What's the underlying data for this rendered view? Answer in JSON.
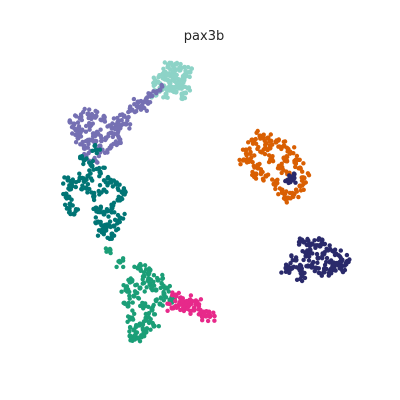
{
  "chart_data": {
    "type": "scatter",
    "title": "pax3b",
    "xlabel": "",
    "ylabel": "",
    "axes_visible": false,
    "grid": false,
    "legend": "none",
    "series": [
      {
        "color": "#8dd3c7",
        "points": [
          [
            174,
            72
          ],
          [
            168,
            67
          ],
          [
            180,
            70
          ],
          [
            186,
            76
          ],
          [
            163,
            78
          ],
          [
            170,
            83
          ],
          [
            178,
            84
          ],
          [
            188,
            88
          ],
          [
            160,
            88
          ],
          [
            166,
            94
          ],
          [
            176,
            92
          ],
          [
            184,
            80
          ],
          [
            158,
            82
          ],
          [
            172,
            76
          ],
          [
            182,
            94
          ],
          [
            164,
            73
          ],
          [
            190,
            72
          ],
          [
            176,
            64
          ],
          [
            168,
            90
          ],
          [
            156,
            95
          ]
        ]
      },
      {
        "color": "#7570b3",
        "points": [
          [
            150,
            96
          ],
          [
            138,
            102
          ],
          [
            132,
            110
          ],
          [
            124,
            116
          ],
          [
            118,
            122
          ],
          [
            112,
            128
          ],
          [
            104,
            120
          ],
          [
            96,
            116
          ],
          [
            88,
            114
          ],
          [
            80,
            118
          ],
          [
            74,
            124
          ],
          [
            82,
            130
          ],
          [
            90,
            126
          ],
          [
            98,
            134
          ],
          [
            106,
            138
          ],
          [
            114,
            134
          ],
          [
            120,
            142
          ],
          [
            110,
            148
          ],
          [
            100,
            146
          ],
          [
            92,
            140
          ],
          [
            84,
            146
          ],
          [
            78,
            138
          ],
          [
            86,
            156
          ],
          [
            94,
            160
          ],
          [
            100,
            152
          ],
          [
            120,
            128
          ],
          [
            126,
            124
          ],
          [
            146,
            100
          ],
          [
            142,
            106
          ],
          [
            76,
            130
          ],
          [
            160,
            90
          ]
        ]
      },
      {
        "color": "#007575",
        "points": [
          [
            84,
            160
          ],
          [
            92,
            166
          ],
          [
            100,
            172
          ],
          [
            108,
            178
          ],
          [
            116,
            184
          ],
          [
            122,
            192
          ],
          [
            118,
            200
          ],
          [
            112,
            208
          ],
          [
            104,
            214
          ],
          [
            98,
            222
          ],
          [
            106,
            228
          ],
          [
            112,
            234
          ],
          [
            102,
            232
          ],
          [
            94,
            196
          ],
          [
            86,
            188
          ],
          [
            80,
            178
          ],
          [
            72,
            186
          ],
          [
            66,
            194
          ],
          [
            70,
            204
          ],
          [
            74,
            214
          ],
          [
            96,
            208
          ],
          [
            104,
            190
          ],
          [
            88,
            176
          ],
          [
            96,
            150
          ],
          [
            114,
            226
          ],
          [
            120,
            218
          ],
          [
            68,
            180
          ]
        ]
      },
      {
        "color": "#1b9e77",
        "points": [
          [
            138,
            268
          ],
          [
            144,
            276
          ],
          [
            150,
            284
          ],
          [
            156,
            290
          ],
          [
            164,
            294
          ],
          [
            170,
            300
          ],
          [
            160,
            304
          ],
          [
            152,
            310
          ],
          [
            146,
            318
          ],
          [
            140,
            324
          ],
          [
            134,
            330
          ],
          [
            130,
            336
          ],
          [
            138,
            338
          ],
          [
            146,
            332
          ],
          [
            154,
            326
          ],
          [
            132,
            318
          ],
          [
            128,
            306
          ],
          [
            134,
            296
          ],
          [
            140,
            288
          ],
          [
            130,
            282
          ],
          [
            126,
            290
          ],
          [
            150,
            270
          ],
          [
            158,
            280
          ],
          [
            166,
            288
          ],
          [
            144,
            306
          ],
          [
            120,
            262
          ],
          [
            110,
            250
          ]
        ]
      },
      {
        "color": "#e7298a",
        "points": [
          [
            176,
            296
          ],
          [
            182,
            302
          ],
          [
            188,
            306
          ],
          [
            194,
            310
          ],
          [
            200,
            314
          ],
          [
            206,
            316
          ],
          [
            190,
            300
          ],
          [
            184,
            308
          ],
          [
            196,
            304
          ],
          [
            178,
            306
          ],
          [
            172,
            308
          ],
          [
            210,
            316
          ]
        ]
      },
      {
        "color": "#d95f02",
        "points": [
          [
            252,
            140
          ],
          [
            260,
            136
          ],
          [
            268,
            138
          ],
          [
            276,
            142
          ],
          [
            284,
            146
          ],
          [
            290,
            152
          ],
          [
            296,
            160
          ],
          [
            300,
            168
          ],
          [
            304,
            178
          ],
          [
            300,
            186
          ],
          [
            294,
            194
          ],
          [
            288,
            198
          ],
          [
            282,
            190
          ],
          [
            274,
            184
          ],
          [
            266,
            176
          ],
          [
            258,
            168
          ],
          [
            250,
            160
          ],
          [
            246,
            150
          ],
          [
            262,
            152
          ],
          [
            272,
            160
          ],
          [
            280,
            168
          ],
          [
            290,
            176
          ],
          [
            270,
            148
          ],
          [
            256,
            174
          ],
          [
            284,
            158
          ],
          [
            244,
            160
          ]
        ]
      },
      {
        "color": "#2a2a6b",
        "points": [
          [
            304,
            242
          ],
          [
            312,
            244
          ],
          [
            320,
            246
          ],
          [
            328,
            250
          ],
          [
            336,
            254
          ],
          [
            342,
            260
          ],
          [
            346,
            264
          ],
          [
            340,
            268
          ],
          [
            332,
            270
          ],
          [
            324,
            272
          ],
          [
            316,
            268
          ],
          [
            308,
            266
          ],
          [
            300,
            270
          ],
          [
            292,
            268
          ],
          [
            286,
            268
          ],
          [
            296,
            260
          ],
          [
            306,
            256
          ],
          [
            318,
            258
          ],
          [
            330,
            262
          ],
          [
            294,
            178
          ],
          [
            288,
            180
          ],
          [
            310,
            250
          ],
          [
            322,
            240
          ],
          [
            334,
            266
          ],
          [
            302,
            276
          ]
        ]
      }
    ]
  }
}
